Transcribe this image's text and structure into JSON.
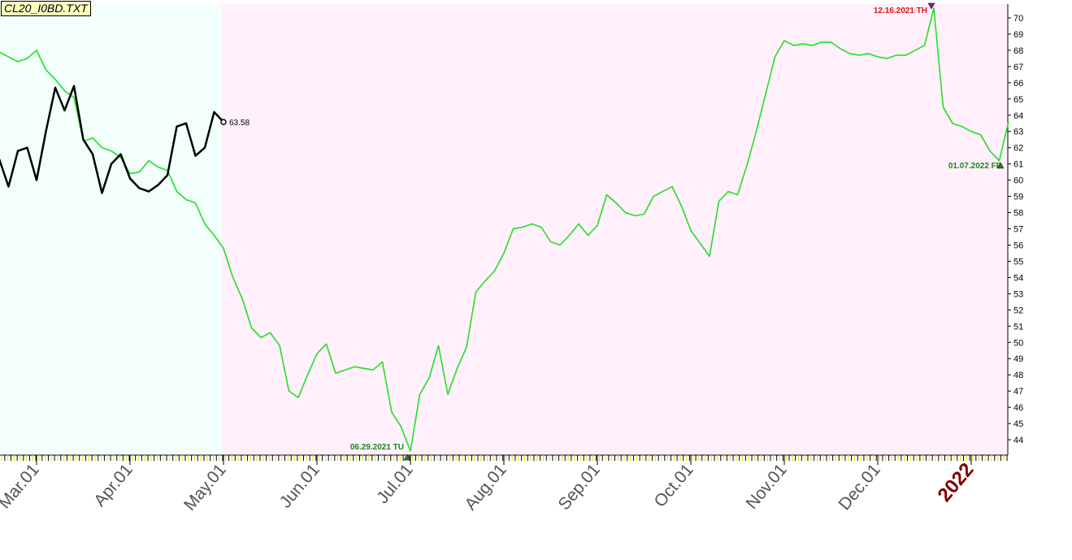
{
  "chart_data": {
    "type": "line",
    "title": "CL20_I0BD.TXT",
    "categories": [
      null,
      null,
      null,
      null,
      "Mar.01",
      null,
      null,
      null,
      null,
      null,
      null,
      null,
      null,
      null,
      "Apr.01",
      null,
      null,
      null,
      null,
      null,
      null,
      null,
      null,
      null,
      "May.01",
      null,
      null,
      null,
      null,
      null,
      null,
      null,
      null,
      null,
      "Jun.01",
      null,
      null,
      null,
      null,
      null,
      null,
      null,
      null,
      null,
      "Jul.01",
      null,
      null,
      null,
      null,
      null,
      null,
      null,
      null,
      null,
      "Aug.01",
      null,
      null,
      null,
      null,
      null,
      null,
      null,
      null,
      null,
      "Sep.01",
      null,
      null,
      null,
      null,
      null,
      null,
      null,
      null,
      null,
      "Oct.01",
      null,
      null,
      null,
      null,
      null,
      null,
      null,
      null,
      null,
      "Nov.01",
      null,
      null,
      null,
      null,
      null,
      null,
      null,
      null,
      null,
      "Dec.01",
      null,
      null,
      null,
      null,
      null,
      null,
      null,
      null,
      null,
      "2022",
      null,
      null,
      null,
      null
    ],
    "series": [
      {
        "color": "#22e022",
        "values": [
          67.9,
          67.6,
          67.3,
          67.5,
          68.0,
          66.8,
          66.2,
          65.5,
          65.1,
          62.4,
          62.6,
          62.0,
          61.8,
          61.4,
          60.4,
          60.5,
          61.2,
          60.8,
          60.6,
          59.3,
          58.8,
          58.6,
          57.3,
          56.6,
          55.8,
          54.0,
          52.7,
          50.9,
          50.3,
          50.6,
          49.8,
          47.0,
          46.6,
          48.0,
          49.3,
          49.9,
          48.1,
          48.3,
          48.5,
          48.4,
          48.3,
          48.8,
          45.7,
          44.8,
          43.3,
          46.8,
          47.8,
          49.8,
          46.8,
          48.4,
          49.7,
          53.1,
          53.8,
          54.4,
          55.5,
          57.0,
          57.1,
          57.3,
          57.1,
          56.2,
          56.0,
          56.6,
          57.3,
          56.6,
          57.2,
          59.1,
          58.6,
          58.0,
          57.8,
          57.9,
          59.0,
          59.3,
          59.6,
          58.4,
          56.9,
          56.1,
          55.3,
          58.7,
          59.3,
          59.1,
          60.9,
          63.0,
          65.3,
          67.6,
          68.6,
          68.3,
          68.4,
          68.3,
          68.5,
          68.5,
          68.1,
          67.8,
          67.7,
          67.8,
          67.6,
          67.5,
          67.7,
          67.7,
          68.0,
          68.3,
          70.6,
          64.5,
          63.5,
          63.3,
          63.0,
          62.8,
          61.8,
          61.2,
          63.6
        ]
      },
      {
        "color": "#000000",
        "values": [
          61.3,
          59.6,
          61.8,
          62.0,
          60.0,
          63.0,
          65.7,
          64.3,
          65.8,
          62.5,
          61.6,
          59.2,
          61.0,
          61.6,
          60.1,
          59.5,
          59.3,
          59.7,
          60.3,
          63.3,
          63.5,
          61.5,
          62.0,
          64.2,
          63.58,
          null,
          null,
          null,
          null,
          null,
          null,
          null,
          null,
          null,
          null,
          null,
          null,
          null,
          null,
          null,
          null,
          null,
          null,
          null,
          null,
          null,
          null,
          null,
          null,
          null,
          null,
          null,
          null,
          null,
          null,
          null,
          null,
          null,
          null,
          null,
          null,
          null,
          null,
          null,
          null,
          null,
          null,
          null,
          null,
          null,
          null,
          null,
          null,
          null,
          null,
          null,
          null,
          null,
          null,
          null,
          null,
          null,
          null,
          null,
          null,
          null,
          null,
          null,
          null,
          null,
          null,
          null,
          null,
          null,
          null,
          null,
          null,
          null,
          null,
          null,
          null,
          null,
          null,
          null,
          null,
          null,
          null,
          null,
          null
        ]
      }
    ],
    "annotations": [
      "06.29.2021 TU",
      "12.16.2021 TH",
      "01.07.2022 FR"
    ],
    "ylim": [
      43.05,
      70.85
    ],
    "yticks": [
      44,
      45,
      46,
      47,
      48,
      49,
      50,
      51,
      52,
      53,
      54,
      55,
      56,
      57,
      58,
      59,
      60,
      61,
      62,
      63,
      64,
      65,
      66,
      67,
      68,
      69,
      70
    ]
  }
}
